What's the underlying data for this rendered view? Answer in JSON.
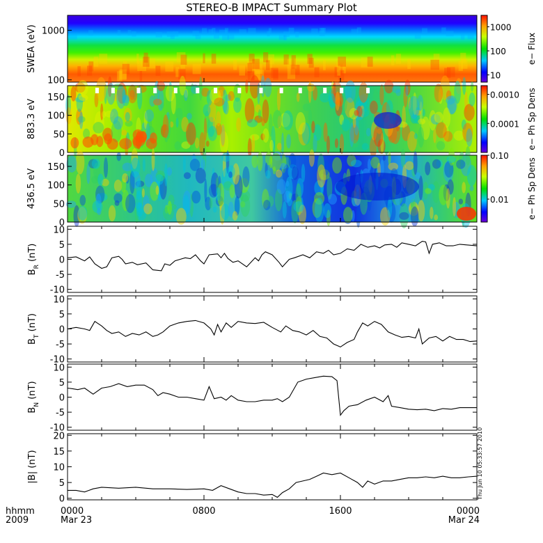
{
  "title": "STEREO-B IMPACT Summary Plot",
  "time_axis": {
    "row1_label": "hhmm",
    "row2_label": "2009",
    "ticks": [
      {
        "hhmm": "0000",
        "date": "Mar 23"
      },
      {
        "hhmm": "0800",
        "date": ""
      },
      {
        "hhmm": "1600",
        "date": ""
      },
      {
        "hhmm": "0000",
        "date": "Mar 24"
      }
    ]
  },
  "timestamp": "Thu Jun 10 05:33:57 2010",
  "colors": {
    "trace": "#000000"
  },
  "chart_data": [
    {
      "type": "heatmap",
      "ylabel": "SWEA (eV)",
      "yscale": "log",
      "ylim": [
        90,
        2000
      ],
      "yticks": [
        "1000",
        "100"
      ],
      "colorbar": {
        "label": "e− Flux",
        "scale": "log",
        "ticks": [
          "1000",
          "100",
          "10"
        ],
        "range": [
          5,
          3000
        ]
      }
    },
    {
      "type": "heatmap",
      "ylabel": "883.3 eV",
      "ylim": [
        0,
        180
      ],
      "yticks": [
        "150",
        "100",
        "50",
        "0"
      ],
      "colorbar": {
        "label": "e− Ph Sp Dens",
        "scale": "log",
        "ticks": [
          "0.0010",
          "0.0001"
        ],
        "range": [
          1e-05,
          0.002
        ]
      }
    },
    {
      "type": "heatmap",
      "ylabel": "436.5 eV",
      "ylim": [
        0,
        180
      ],
      "yticks": [
        "150",
        "100",
        "50",
        "0"
      ],
      "colorbar": {
        "label": "e− Ph Sp Dens",
        "scale": "log",
        "ticks": [
          "0.10",
          "0.01"
        ],
        "range": [
          0.003,
          0.1
        ]
      }
    },
    {
      "type": "line",
      "ylabel": "B_R (nT)",
      "ylabel_main": "B",
      "ylabel_sub": "R",
      "ylabel_unit": " (nT)",
      "ylim": [
        -11,
        11
      ],
      "yticks": [
        "10",
        "5",
        "0",
        "-5",
        "-10"
      ],
      "xlim_hours": [
        0,
        24
      ],
      "x_hours": [
        0,
        0.5,
        1,
        1.3,
        1.6,
        2,
        2.3,
        2.6,
        3,
        3.2,
        3.4,
        3.8,
        4.1,
        4.6,
        5,
        5.5,
        5.7,
        6,
        6.3,
        6.6,
        6.9,
        7.2,
        7.5,
        7.8,
        8,
        8.3,
        8.8,
        9,
        9.2,
        9.4,
        9.7,
        10,
        10.5,
        11,
        11.2,
        11.4,
        11.6,
        12,
        12.4,
        12.6,
        13,
        13.3,
        13.8,
        14.2,
        14.6,
        15,
        15.3,
        15.6,
        16,
        16.4,
        16.8,
        17.2,
        17.6,
        18,
        18.3,
        18.6,
        19,
        19.3,
        19.6,
        20,
        20.4,
        20.8,
        21,
        21.2,
        21.4,
        21.8,
        22.2,
        22.6,
        23,
        23.4,
        24
      ],
      "values": [
        0.5,
        0.8,
        -0.5,
        0.8,
        -1.5,
        -3,
        -2.5,
        0.5,
        1,
        0,
        -1.5,
        -1,
        -1.8,
        -1.2,
        -3.5,
        -3.8,
        -1.5,
        -2,
        -0.5,
        0,
        0.5,
        0.2,
        1.5,
        -0.5,
        -1.5,
        1.5,
        1.8,
        0.5,
        2,
        0.3,
        -1,
        -0.5,
        -2.5,
        0.5,
        -0.5,
        1.5,
        2.5,
        1.5,
        -1,
        -2.5,
        0,
        0.5,
        1.5,
        0.5,
        2.5,
        2,
        3,
        1.5,
        2,
        3.5,
        3,
        5,
        4,
        4.5,
        3.8,
        4.8,
        5,
        4,
        5.5,
        5,
        4.5,
        6,
        5.8,
        2,
        5,
        5.5,
        4.5,
        4.5,
        5,
        4.8,
        4.5
      ]
    },
    {
      "type": "line",
      "ylabel": "B_T (nT)",
      "ylabel_main": "B",
      "ylabel_sub": "T",
      "ylabel_unit": " (nT)",
      "ylim": [
        -11,
        11
      ],
      "yticks": [
        "10",
        "5",
        "0",
        "-5",
        "-10"
      ],
      "xlim_hours": [
        0,
        24
      ],
      "x_hours": [
        0,
        0.5,
        1,
        1.3,
        1.6,
        2,
        2.3,
        2.6,
        3,
        3.4,
        3.8,
        4.2,
        4.6,
        5,
        5.3,
        5.6,
        6,
        6.5,
        7,
        7.5,
        8,
        8.4,
        8.6,
        8.8,
        9,
        9.3,
        9.6,
        10,
        10.5,
        11,
        11.5,
        12,
        12.5,
        12.8,
        13.2,
        13.6,
        14,
        14.4,
        14.8,
        15.2,
        15.6,
        16,
        16.4,
        16.8,
        17,
        17.3,
        17.6,
        18,
        18.4,
        18.8,
        19.2,
        19.6,
        20,
        20.4,
        20.6,
        20.8,
        21.2,
        21.6,
        22,
        22.4,
        22.8,
        23.2,
        23.6,
        24
      ],
      "values": [
        0,
        0.5,
        0,
        -0.5,
        2.5,
        1,
        -0.5,
        -1.5,
        -1,
        -2.5,
        -1.5,
        -2,
        -1,
        -2.5,
        -2,
        -1,
        1,
        2,
        2.5,
        2.8,
        2,
        0,
        -2,
        1.5,
        -1,
        2,
        0.5,
        2.5,
        2,
        1.8,
        2.2,
        0.5,
        -1,
        1,
        -0.5,
        -1,
        -2,
        -0.5,
        -2.5,
        -3,
        -5,
        -6,
        -4.5,
        -3.5,
        -1,
        2,
        1,
        2.5,
        1.5,
        -1,
        -2,
        -2.8,
        -2.5,
        -3,
        0,
        -5,
        -3,
        -2.5,
        -4,
        -2.5,
        -3.5,
        -3.5,
        -4.2,
        -4
      ]
    },
    {
      "type": "line",
      "ylabel": "B_N (nT)",
      "ylabel_main": "B",
      "ylabel_sub": "N",
      "ylabel_unit": " (nT)",
      "ylim": [
        -11,
        11
      ],
      "yticks": [
        "10",
        "5",
        "0",
        "-5",
        "-10"
      ],
      "xlim_hours": [
        0,
        24
      ],
      "x_hours": [
        0,
        0.3,
        0.6,
        1,
        1.5,
        2,
        2.5,
        3,
        3.5,
        4,
        4.5,
        5,
        5.3,
        5.6,
        6,
        6.5,
        7,
        7.5,
        8,
        8.3,
        8.6,
        9,
        9.3,
        9.6,
        10,
        10.5,
        11,
        11.5,
        12,
        12.3,
        12.6,
        13,
        13.5,
        14,
        14.5,
        15,
        15.5,
        15.8,
        16,
        16.2,
        16.5,
        17,
        17.5,
        18,
        18.5,
        18.8,
        19,
        19.5,
        20,
        20.5,
        21,
        21.5,
        22,
        22.5,
        23,
        23.5,
        24
      ],
      "values": [
        3,
        2.8,
        2.5,
        3,
        1,
        3,
        3.5,
        4.5,
        3.5,
        4,
        4,
        2.5,
        0.5,
        1.5,
        1,
        0,
        0,
        -0.5,
        -1,
        3.5,
        -0.5,
        0,
        -1,
        0.5,
        -1,
        -1.5,
        -1.5,
        -1,
        -1,
        -0.5,
        -1.5,
        0,
        5,
        6,
        6.5,
        7,
        6.8,
        5.5,
        -6,
        -4.5,
        -3,
        -2.5,
        -1,
        0,
        -1.5,
        0.5,
        -3,
        -3.5,
        -4,
        -4.2,
        -4,
        -4.5,
        -3.8,
        -4,
        -3.5,
        -3.5,
        -3.5
      ]
    },
    {
      "type": "line",
      "ylabel": "|B| (nT)",
      "ylabel_main": "|B|",
      "ylabel_sub": "",
      "ylabel_unit": " (nT)",
      "ylim": [
        -0.5,
        20.5
      ],
      "yticks": [
        "20",
        "15",
        "10",
        "5",
        "0"
      ],
      "xlim_hours": [
        0,
        24
      ],
      "x_hours": [
        0,
        0.5,
        1,
        1.5,
        2,
        3,
        4,
        5,
        6,
        7,
        8,
        8.5,
        9,
        9.5,
        10,
        10.5,
        11,
        11.5,
        12,
        12.3,
        12.6,
        13,
        13.4,
        13.8,
        14.2,
        14.6,
        15,
        15.5,
        16,
        16.5,
        17,
        17.3,
        17.6,
        18,
        18.5,
        19,
        19.5,
        20,
        20.5,
        21,
        21.5,
        22,
        22.5,
        23,
        23.5,
        24
      ],
      "values": [
        2.5,
        2.5,
        2,
        3,
        3.5,
        3.2,
        3.5,
        3,
        3,
        2.8,
        3,
        2.5,
        4,
        3,
        2,
        1.5,
        1.5,
        1,
        1.2,
        0.3,
        1.8,
        3,
        5,
        5.5,
        6,
        7,
        8,
        7.5,
        8,
        6.5,
        5,
        3.5,
        5.5,
        4.5,
        5.5,
        5.5,
        6,
        6.5,
        6.5,
        6.8,
        6.5,
        7,
        6.5,
        6.5,
        6.8,
        7
      ]
    }
  ]
}
